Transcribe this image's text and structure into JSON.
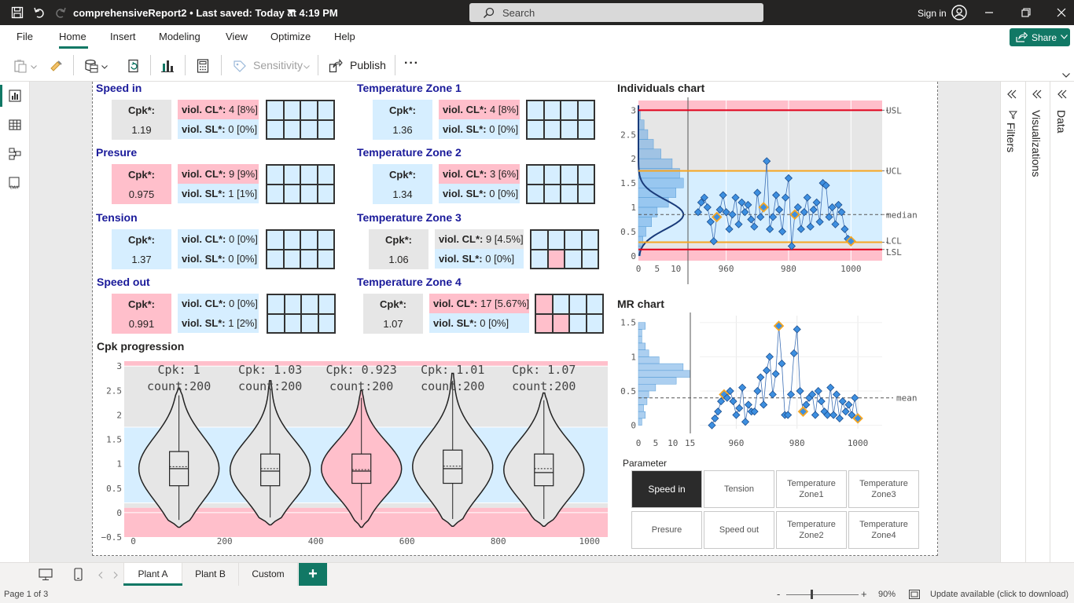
{
  "titlebar": {
    "document": "comprehensiveReport2",
    "separator": "•",
    "saved": "Last saved: Today at 4:19 PM",
    "search_placeholder": "Search",
    "signin": "Sign in"
  },
  "menu": {
    "items": [
      "File",
      "Home",
      "Insert",
      "Modeling",
      "View",
      "Optimize",
      "Help"
    ],
    "active": "Home",
    "share": "Share"
  },
  "toolbar": {
    "sensitivity": "Sensitivity",
    "publish": "Publish",
    "more": "···"
  },
  "right_panes": {
    "filters": "Filters",
    "visualizations": "Visualizations",
    "data": "Data"
  },
  "cards": {
    "cpk_label": "Cpk*:",
    "viol_cl_label": "viol. CL*:",
    "viol_sl_label": "viol. SL*:",
    "speed_in": {
      "title": "Speed in",
      "cpk": "1.19",
      "viol_cl": "4 [8%]",
      "viol_sl": "0 [0%]"
    },
    "presure": {
      "title": "Presure",
      "cpk": "0.975",
      "viol_cl": "9 [9%]",
      "viol_sl": "1 [1%]"
    },
    "tension": {
      "title": "Tension",
      "cpk": "1.37",
      "viol_cl": "0 [0%]",
      "viol_sl": "0 [0%]"
    },
    "speed_out": {
      "title": "Speed out",
      "cpk": "0.991",
      "viol_cl": "0 [0%]",
      "viol_sl": "1 [2%]"
    },
    "tz1": {
      "title": "Temperature Zone 1",
      "cpk": "1.36",
      "viol_cl": "4 [8%]",
      "viol_sl": "0 [0%]"
    },
    "tz2": {
      "title": "Temperature Zone 2",
      "cpk": "1.34",
      "viol_cl": "3 [6%]",
      "viol_sl": "0 [0%]"
    },
    "tz3": {
      "title": "Temperature Zone 3",
      "cpk": "1.06",
      "viol_cl": "9 [4.5%]",
      "viol_sl": "0 [0%]"
    },
    "tz4": {
      "title": "Temperature Zone 4",
      "cpk": "1.07",
      "viol_cl": "17 [5.67%]",
      "viol_sl": "0 [0%]"
    }
  },
  "colors": {
    "blue": "#d6eeff",
    "pink": "#ffbfcb",
    "grey": "#e6e6e6",
    "title_blue": "#1a1a9a",
    "accent_green": "#117865"
  },
  "cpk_progression": {
    "title": "Cpk progression",
    "chart_data": {
      "type": "violin",
      "x_ticks": [
        "0",
        "200",
        "400",
        "600",
        "800",
        "1000"
      ],
      "y_ticks": [
        "3",
        "2.5",
        "2",
        "1.5",
        "1",
        "0.5",
        "0",
        "−0.5"
      ],
      "ylim": [
        -0.5,
        3.1
      ],
      "xlim": [
        -20,
        1040
      ],
      "bands": {
        "pink_low": [
          -0.5,
          0.1
        ],
        "grey_low": [
          0.1,
          0.2
        ],
        "blue": [
          0.2,
          1.75
        ],
        "grey_high": [
          1.75,
          3.0
        ],
        "pink_high": [
          3.0,
          3.1
        ]
      },
      "groups": [
        {
          "cpk_label": "Cpk: 1",
          "count_label": "count:200",
          "x": 100,
          "fill": "grey",
          "min": -0.3,
          "max": 2.55,
          "q1": 0.55,
          "q3": 1.25,
          "median": 0.9,
          "mean": 0.94
        },
        {
          "cpk_label": "Cpk: 1.03",
          "count_label": "count:200",
          "x": 300,
          "fill": "grey",
          "min": -0.25,
          "max": 2.7,
          "q1": 0.55,
          "q3": 1.2,
          "median": 0.85,
          "mean": 0.9
        },
        {
          "cpk_label": "Cpk: 0.923",
          "count_label": "count:200",
          "x": 500,
          "fill": "pink",
          "min": -0.3,
          "max": 2.5,
          "q1": 0.6,
          "q3": 1.2,
          "median": 0.85,
          "mean": 0.88
        },
        {
          "cpk_label": "Cpk: 1.01",
          "count_label": "count:200",
          "x": 700,
          "fill": "grey",
          "min": -0.28,
          "max": 2.85,
          "q1": 0.6,
          "q3": 1.28,
          "median": 0.9,
          "mean": 0.95
        },
        {
          "cpk_label": "Cpk: 1.07",
          "count_label": "count:200",
          "x": 900,
          "fill": "grey",
          "min": -0.28,
          "max": 2.45,
          "q1": 0.55,
          "q3": 1.2,
          "median": 0.82,
          "mean": 0.9
        }
      ]
    }
  },
  "individuals": {
    "title": "Individuals chart",
    "chart_data": {
      "type": "scatter",
      "x_ticks": [
        "0",
        "5",
        "10",
        "960",
        "980",
        "1000"
      ],
      "y_ticks": [
        "3",
        "2.5",
        "2",
        "1.5",
        "1",
        "0.5",
        "0"
      ],
      "ylim": [
        -0.1,
        3.2
      ],
      "xlim": [
        948,
        1010
      ],
      "hist_xlim": [
        0,
        13
      ],
      "limits": {
        "USL": 3.0,
        "UCL": 1.75,
        "median": 0.85,
        "LCL": 0.28,
        "LSL": 0.13
      },
      "limit_labels": [
        "USL",
        "UCL",
        "median",
        "LCL",
        "LSL"
      ],
      "x": [
        951,
        952,
        953,
        954,
        955,
        956,
        957,
        958,
        959,
        960,
        961,
        962,
        963,
        964,
        965,
        966,
        967,
        968,
        969,
        970,
        971,
        972,
        973,
        974,
        975,
        976,
        977,
        978,
        979,
        980,
        981,
        982,
        983,
        984,
        985,
        986,
        987,
        988,
        989,
        990,
        991,
        992,
        993,
        994,
        995,
        996,
        997,
        998,
        999,
        1000
      ],
      "y": [
        0.9,
        1.1,
        1.2,
        1.0,
        0.7,
        0.3,
        0.8,
        0.95,
        1.25,
        0.9,
        0.55,
        0.85,
        1.2,
        0.65,
        1.1,
        0.9,
        1.05,
        0.75,
        0.6,
        1.3,
        0.8,
        1.0,
        1.95,
        0.55,
        0.8,
        1.25,
        0.95,
        0.5,
        1.2,
        1.6,
        0.2,
        0.85,
        1.0,
        0.55,
        0.9,
        1.2,
        0.6,
        0.95,
        1.1,
        0.7,
        1.5,
        1.45,
        0.8,
        1.0,
        0.65,
        1.05,
        0.9,
        0.55,
        0.35,
        0.3
      ],
      "highlight_x": [
        957,
        972,
        982,
        1000
      ],
      "hist": [
        0.5,
        1.5,
        2.5,
        4,
        6,
        9,
        11,
        12,
        10,
        8,
        5,
        3.5,
        2,
        1.2,
        0.6
      ]
    }
  },
  "mr": {
    "title": "MR chart",
    "chart_data": {
      "type": "scatter",
      "x_ticks": [
        "0",
        "5",
        "10",
        "15",
        "960",
        "980",
        "1000"
      ],
      "y_ticks": [
        "1.5",
        "1",
        "0.5",
        "0"
      ],
      "ylim": [
        -0.05,
        1.6
      ],
      "xlim": [
        948,
        1008
      ],
      "hist_xlim": [
        0,
        16
      ],
      "mean": 0.4,
      "mean_label": "mean",
      "x": [
        952,
        953,
        954,
        955,
        956,
        957,
        958,
        959,
        960,
        961,
        962,
        963,
        964,
        965,
        966,
        967,
        968,
        969,
        970,
        971,
        972,
        973,
        974,
        975,
        976,
        977,
        978,
        979,
        980,
        981,
        982,
        983,
        984,
        985,
        986,
        987,
        988,
        989,
        990,
        991,
        992,
        993,
        994,
        995,
        996,
        997,
        998,
        999,
        1000
      ],
      "y": [
        0.0,
        0.1,
        0.2,
        0.35,
        0.45,
        0.4,
        0.5,
        0.35,
        0.15,
        0.25,
        0.55,
        0.05,
        0.3,
        0.2,
        0.2,
        0.5,
        0.7,
        0.3,
        0.8,
        1.0,
        0.45,
        0.75,
        1.45,
        0.9,
        0.15,
        0.15,
        0.45,
        1.05,
        1.4,
        0.5,
        0.2,
        0.3,
        0.4,
        0.45,
        0.15,
        0.5,
        0.35,
        0.2,
        0.15,
        0.55,
        0.15,
        0.45,
        0.1,
        0.35,
        0.2,
        0.3,
        0.15,
        0.4,
        0.1
      ],
      "highlight_x": [
        956,
        974,
        982,
        1000
      ],
      "hist": [
        1,
        2,
        1.5,
        2.5,
        3,
        5,
        11,
        15,
        13,
        6,
        3,
        2,
        1,
        1,
        2
      ]
    }
  },
  "parameter": {
    "title": "Parameter",
    "buttons": [
      {
        "label": "Speed in",
        "active": true
      },
      {
        "label": "Tension",
        "active": false
      },
      {
        "label": "Temperature Zone1",
        "active": false
      },
      {
        "label": "Temperature Zone3",
        "active": false
      },
      {
        "label": "Presure",
        "active": false
      },
      {
        "label": "Speed out",
        "active": false
      },
      {
        "label": "Temperature Zone2",
        "active": false
      },
      {
        "label": "Temperature Zone4",
        "active": false
      }
    ]
  },
  "tabs": {
    "items": [
      "Plant A",
      "Plant B",
      "Custom"
    ],
    "active": "Plant A",
    "add": "+"
  },
  "status": {
    "page": "Page 1 of 3",
    "zoom": "90%",
    "zoom_minus": "-",
    "zoom_plus": "+",
    "update": "Update available (click to download)"
  }
}
